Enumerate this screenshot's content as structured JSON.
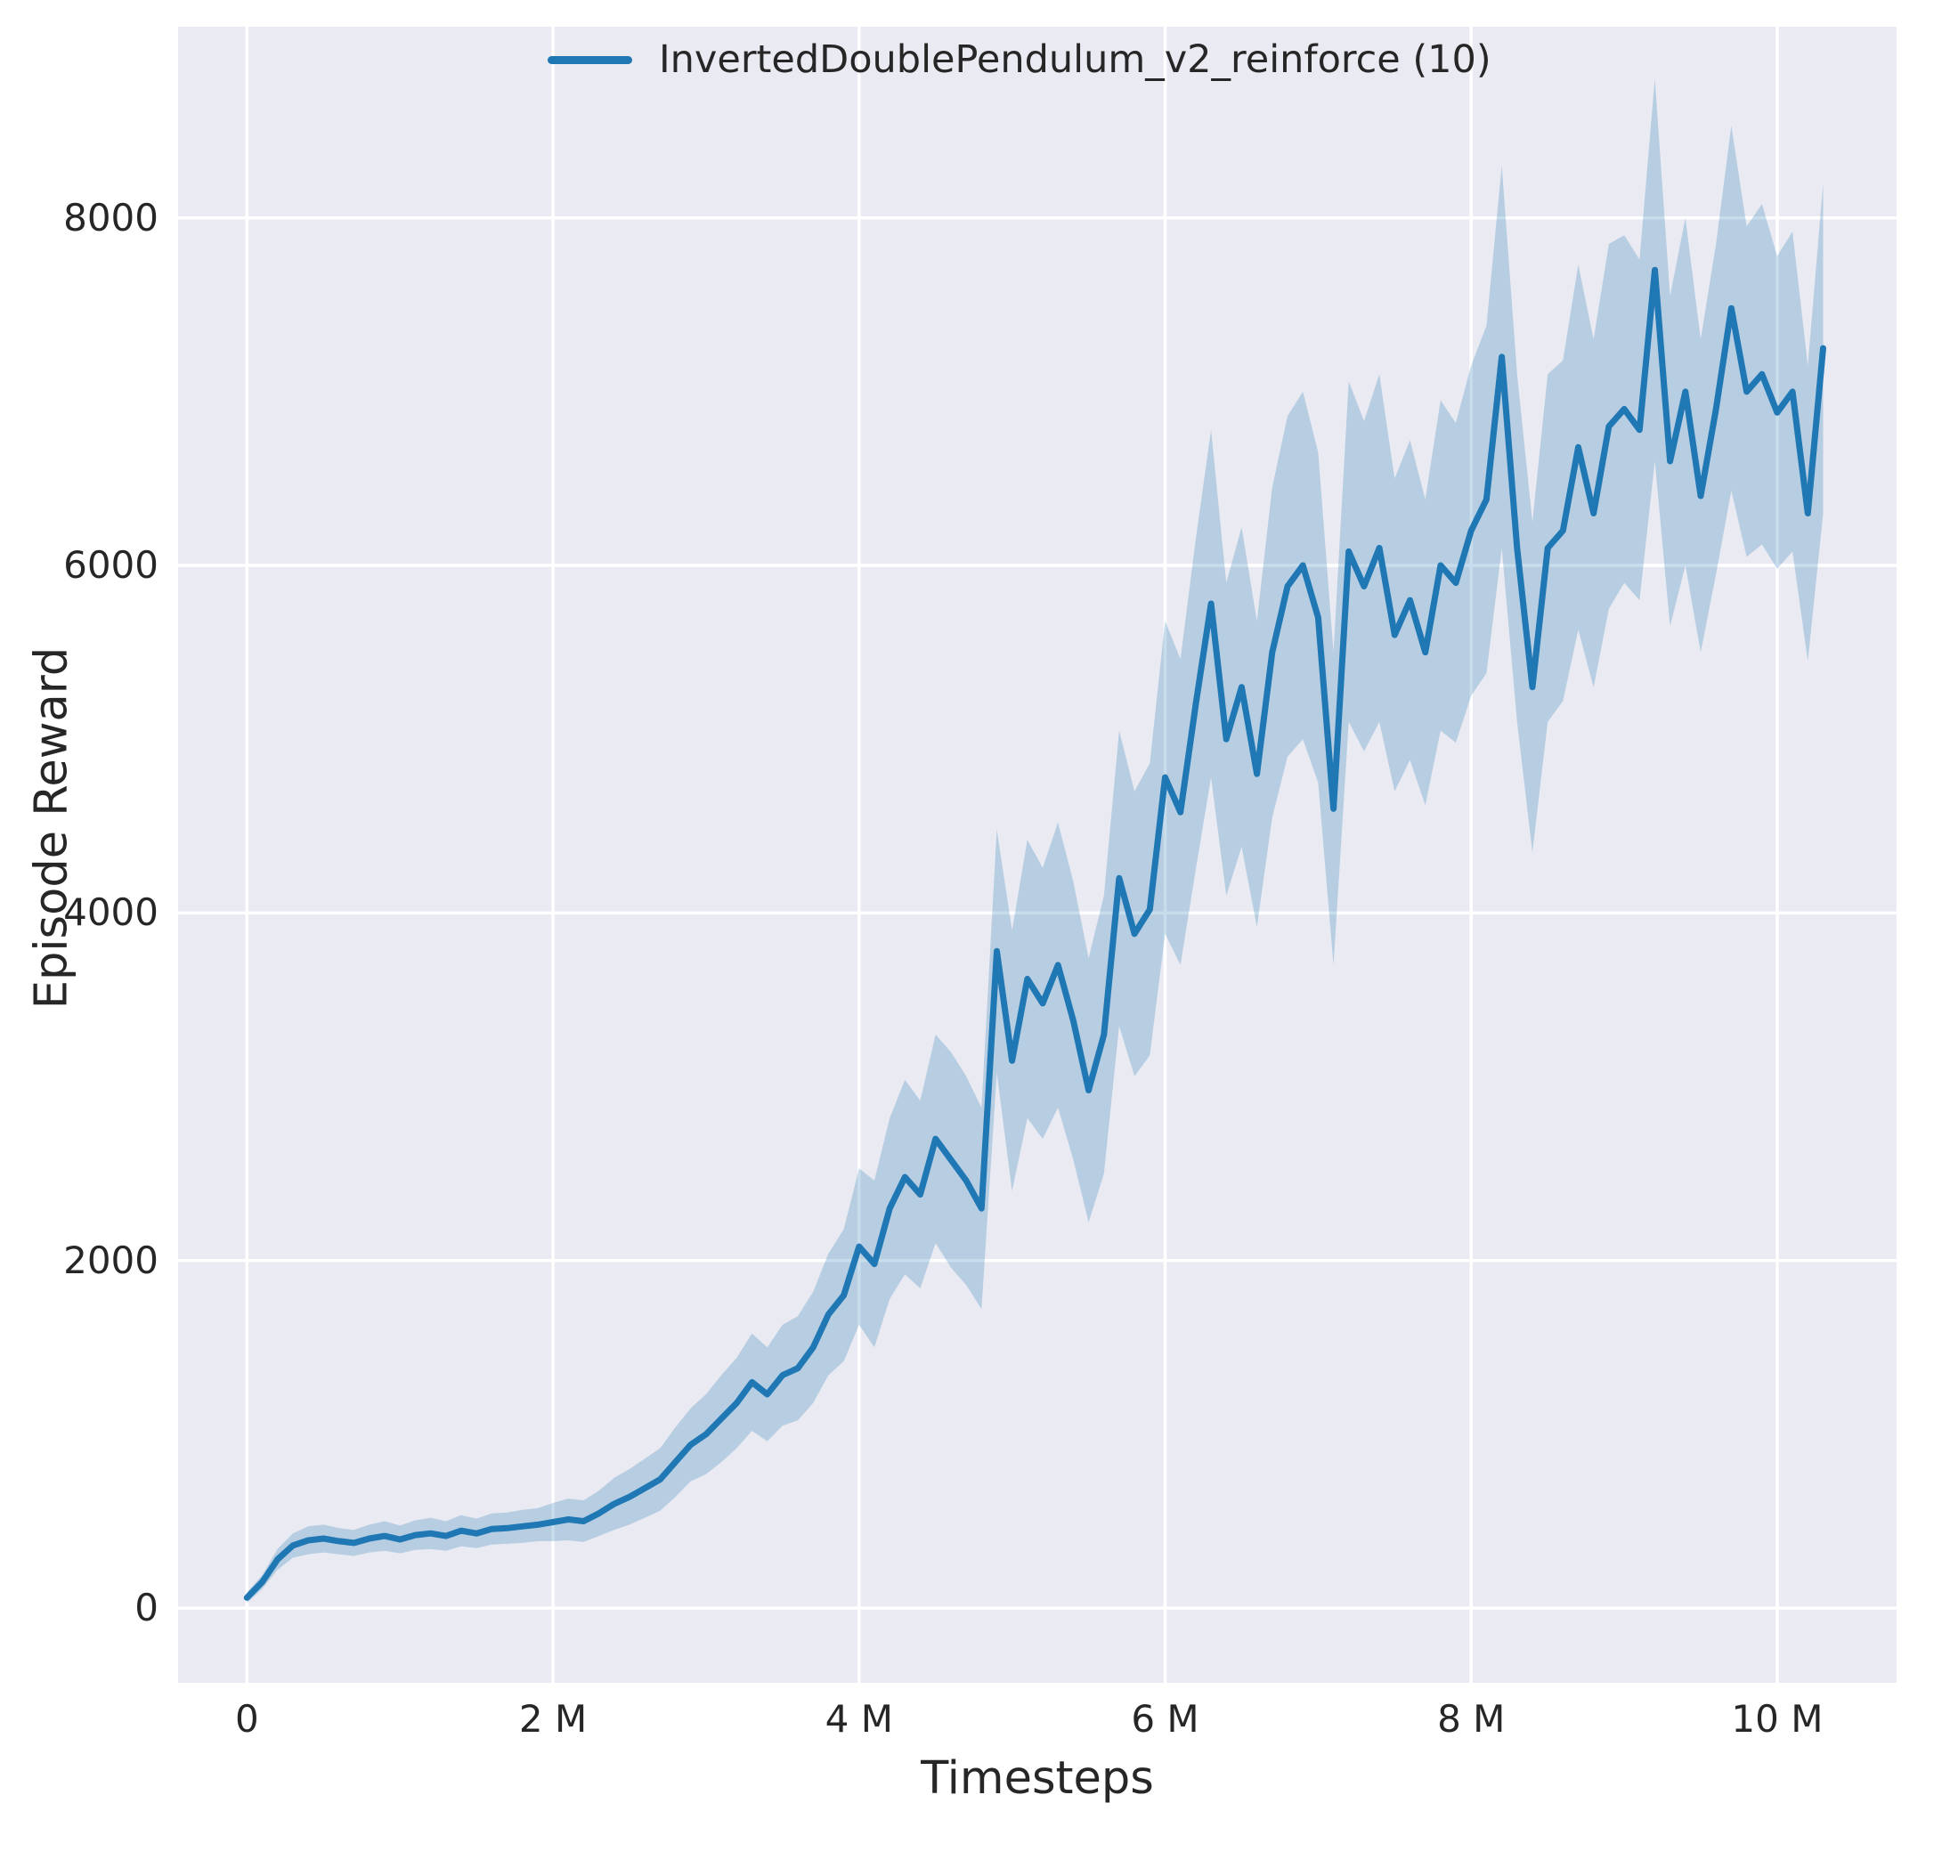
{
  "figure": {
    "background": "#ffffff"
  },
  "chart_data": {
    "type": "line",
    "title": "",
    "xlabel": "Timesteps",
    "ylabel": "Episode Reward",
    "x_unit": "millions of timesteps",
    "xlim": [
      -0.45,
      10.78
    ],
    "ylim": [
      -430,
      9100
    ],
    "grid": true,
    "legend_position": "upper center",
    "xticks": [
      {
        "value": 0,
        "label": "0"
      },
      {
        "value": 2,
        "label": "2 M"
      },
      {
        "value": 4,
        "label": "4 M"
      },
      {
        "value": 6,
        "label": "6 M"
      },
      {
        "value": 8,
        "label": "8 M"
      },
      {
        "value": 10,
        "label": "10 M"
      }
    ],
    "yticks": [
      {
        "value": 0,
        "label": "0"
      },
      {
        "value": 2000,
        "label": "2000"
      },
      {
        "value": 4000,
        "label": "4000"
      },
      {
        "value": 6000,
        "label": "6000"
      },
      {
        "value": 8000,
        "label": "8000"
      }
    ],
    "colors": {
      "plot_bg": "#eaeaf2",
      "grid": "#ffffff",
      "line": "#1f77b4",
      "band_opacity": 0.25,
      "text": "#262626"
    },
    "series": [
      {
        "name": "InvertedDoublePendulum_v2_reinforce (10)",
        "x": [
          0,
          0.1,
          0.2,
          0.3,
          0.4,
          0.5,
          0.6,
          0.7,
          0.8,
          0.9,
          1,
          1.1,
          1.2,
          1.3,
          1.4,
          1.5,
          1.6,
          1.7,
          1.8,
          1.9,
          2,
          2.1,
          2.2,
          2.3,
          2.4,
          2.5,
          2.6,
          2.7,
          2.8,
          2.9,
          3,
          3.1,
          3.2,
          3.3,
          3.4,
          3.5,
          3.6,
          3.7,
          3.8,
          3.9,
          4,
          4.1,
          4.2,
          4.3,
          4.4,
          4.5,
          4.6,
          4.7,
          4.8,
          4.9,
          5,
          5.1,
          5.2,
          5.3,
          5.4,
          5.5,
          5.6,
          5.7,
          5.8,
          5.9,
          6,
          6.1,
          6.2,
          6.3,
          6.4,
          6.5,
          6.6,
          6.7,
          6.8,
          6.9,
          7,
          7.1,
          7.2,
          7.3,
          7.4,
          7.5,
          7.6,
          7.7,
          7.8,
          7.9,
          8,
          8.1,
          8.2,
          8.3,
          8.4,
          8.5,
          8.6,
          8.7,
          8.8,
          8.9,
          9,
          9.1,
          9.2,
          9.3,
          9.4,
          9.5,
          9.6,
          9.7,
          9.8,
          9.9,
          10,
          10.1,
          10.2,
          10.3
        ],
        "mean": [
          60,
          150,
          280,
          360,
          390,
          400,
          385,
          375,
          400,
          415,
          395,
          420,
          430,
          415,
          445,
          430,
          455,
          460,
          470,
          480,
          495,
          510,
          500,
          545,
          600,
          640,
          690,
          740,
          840,
          940,
          1000,
          1090,
          1180,
          1300,
          1230,
          1340,
          1380,
          1500,
          1690,
          1800,
          2080,
          1980,
          2300,
          2480,
          2380,
          2700,
          2580,
          2460,
          2300,
          3780,
          3150,
          3620,
          3480,
          3700,
          3380,
          2980,
          3300,
          4200,
          3880,
          4020,
          4780,
          4580,
          5200,
          5780,
          5000,
          5300,
          4800,
          5500,
          5880,
          6000,
          5700,
          4600,
          6080,
          5880,
          6100,
          5600,
          5800,
          5500,
          6000,
          5900,
          6200,
          6380,
          7200,
          6100,
          5300,
          6100,
          6200,
          6680,
          6300,
          6800,
          6900,
          6780,
          7700,
          6600,
          7000,
          6400,
          6900,
          7480,
          7000,
          7100,
          6880,
          7000,
          6300,
          7250
        ],
        "band_halfwidth": [
          30,
          40,
          60,
          70,
          80,
          80,
          75,
          75,
          80,
          85,
          80,
          85,
          90,
          85,
          90,
          85,
          90,
          90,
          95,
          95,
          110,
          120,
          120,
          130,
          150,
          160,
          170,
          180,
          200,
          210,
          230,
          250,
          260,
          280,
          270,
          290,
          300,
          320,
          350,
          380,
          450,
          480,
          520,
          560,
          540,
          600,
          620,
          600,
          580,
          700,
          750,
          800,
          780,
          820,
          800,
          760,
          800,
          850,
          820,
          840,
          900,
          880,
          950,
          1000,
          900,
          920,
          880,
          950,
          980,
          1000,
          950,
          900,
          980,
          950,
          1000,
          900,
          920,
          880,
          950,
          920,
          950,
          1000,
          1100,
          1000,
          950,
          1000,
          980,
          1050,
          1000,
          1050,
          1000,
          980,
          1100,
          950,
          1000,
          900,
          950,
          1050,
          950,
          980,
          900,
          920,
          850,
          950
        ]
      }
    ]
  }
}
